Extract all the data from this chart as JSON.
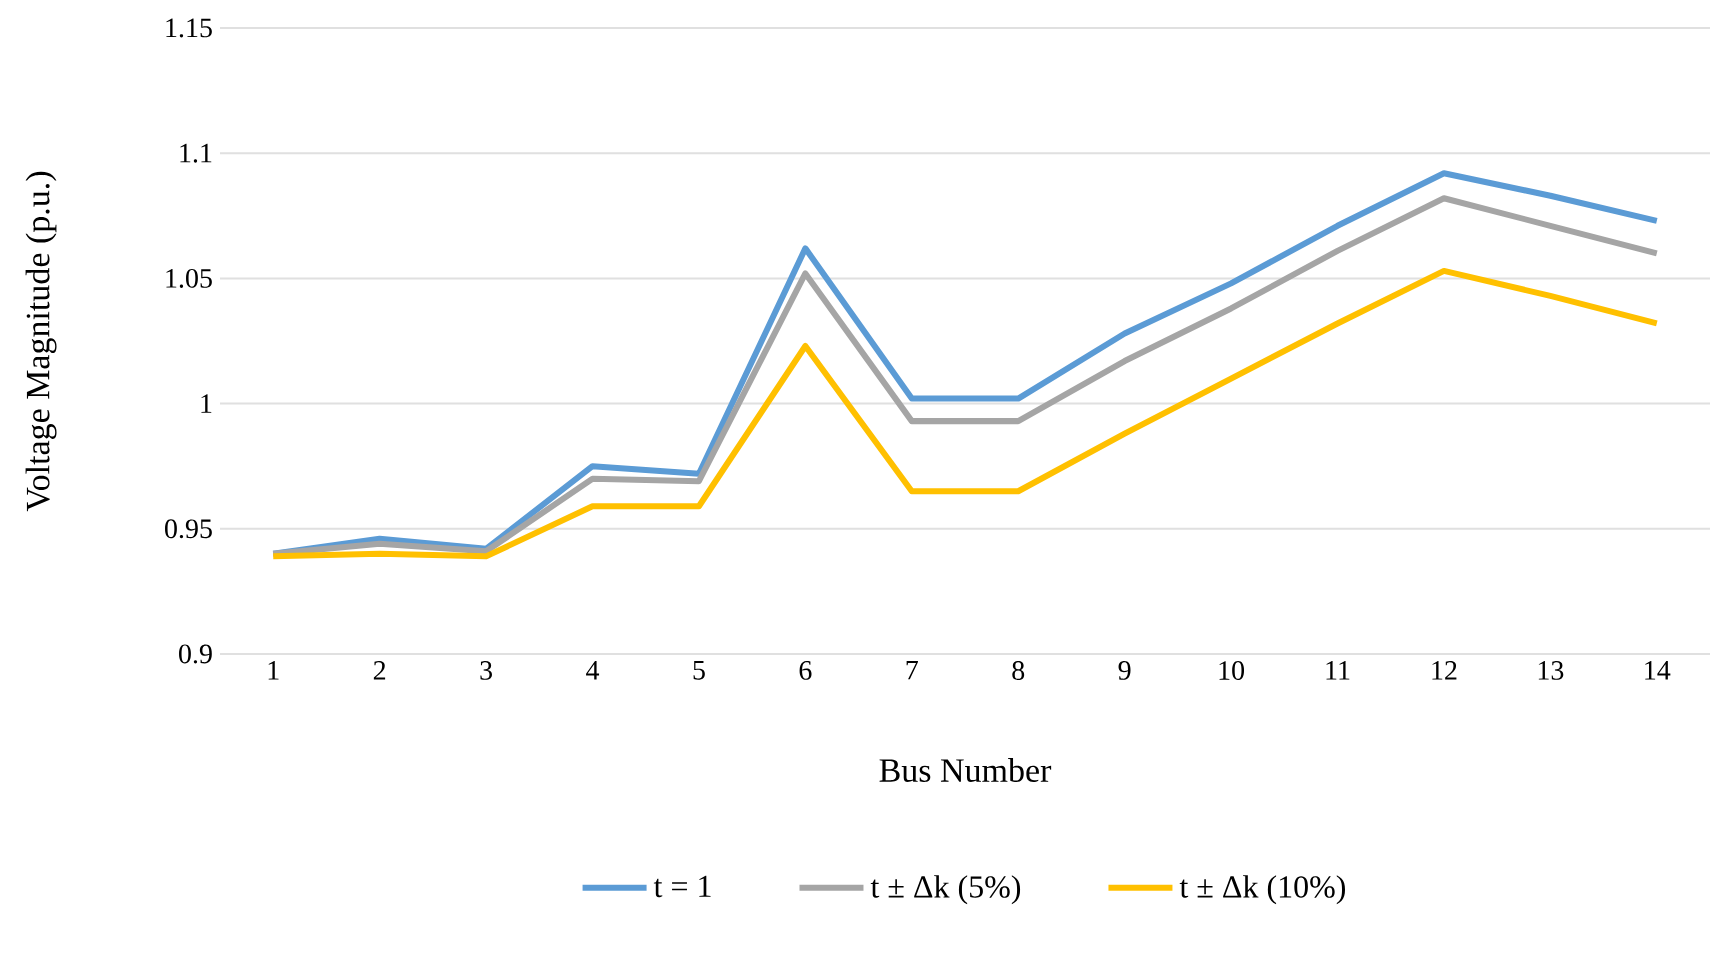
{
  "chart_data": {
    "type": "line",
    "xlabel": "Bus Number",
    "ylabel": "Voltage Magnitude (p.u.)",
    "categories": [
      "1",
      "2",
      "3",
      "4",
      "5",
      "6",
      "7",
      "8",
      "9",
      "10",
      "11",
      "12",
      "13",
      "14"
    ],
    "series": [
      {
        "name": "t = 1",
        "color": "#5b9bd5",
        "values": [
          0.94,
          0.946,
          0.942,
          0.975,
          0.972,
          1.062,
          1.002,
          1.002,
          1.028,
          1.048,
          1.071,
          1.092,
          1.083,
          1.073
        ]
      },
      {
        "name": "t ± Δk (5%)",
        "color": "#a5a5a5",
        "values": [
          0.94,
          0.944,
          0.941,
          0.97,
          0.969,
          1.052,
          0.993,
          0.993,
          1.017,
          1.038,
          1.061,
          1.082,
          1.071,
          1.06
        ]
      },
      {
        "name": "t ± Δk (10%)",
        "color": "#ffc000",
        "values": [
          0.939,
          0.94,
          0.939,
          0.959,
          0.959,
          1.023,
          0.965,
          0.965,
          0.988,
          1.01,
          1.032,
          1.053,
          1.043,
          1.032
        ]
      }
    ],
    "ylim": [
      0.9,
      1.15
    ],
    "yticks": [
      0.9,
      0.95,
      1,
      1.05,
      1.1,
      1.15
    ],
    "grid": "y",
    "legend": "bottom",
    "marker": "none",
    "line_style": "solid"
  }
}
